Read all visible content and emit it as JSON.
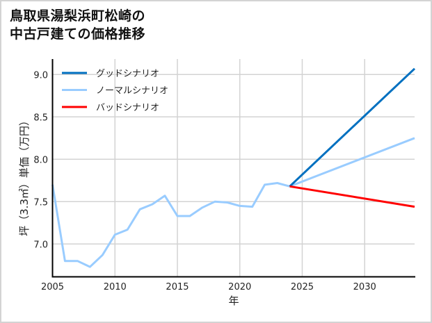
{
  "title": {
    "line1": "鳥取県湯梨浜町松崎の",
    "line2": "中古戸建ての価格推移"
  },
  "legend": [
    {
      "label": "グッドシナリオ",
      "color": "#0070c0"
    },
    {
      "label": "ノーマルシナリオ",
      "color": "#99ccff"
    },
    {
      "label": "バッドシナリオ",
      "color": "#ff0000"
    }
  ],
  "axes": {
    "xlabel": "年",
    "ylabel": "坪（3.3㎡）単価（万円）",
    "xticks": [
      "2005",
      "2010",
      "2015",
      "2020",
      "2025",
      "2030"
    ],
    "yticks": [
      "7.0",
      "7.5",
      "8.0",
      "8.5",
      "9.0"
    ]
  },
  "chart_data": {
    "type": "line",
    "title": "鳥取県湯梨浜町松崎の中古戸建ての価格推移",
    "xlabel": "年",
    "ylabel": "坪（3.3㎡）単価（万円）",
    "xlim": [
      2005,
      2034
    ],
    "ylim": [
      6.62,
      9.17
    ],
    "grid": true,
    "legend_position": "upper left",
    "series": [
      {
        "name": "ノーマルシナリオ (実績)",
        "color": "#99ccff",
        "x": [
          2005,
          2006,
          2007,
          2008,
          2009,
          2010,
          2011,
          2012,
          2013,
          2014,
          2015,
          2016,
          2017,
          2018,
          2019,
          2020,
          2021,
          2022,
          2023,
          2024
        ],
        "values": [
          7.7,
          6.8,
          6.8,
          6.73,
          6.87,
          7.11,
          7.17,
          7.41,
          7.47,
          7.57,
          7.33,
          7.33,
          7.43,
          7.5,
          7.49,
          7.45,
          7.44,
          7.7,
          7.72,
          7.68
        ]
      },
      {
        "name": "グッドシナリオ",
        "color": "#0070c0",
        "x": [
          2024,
          2034
        ],
        "values": [
          7.68,
          9.07
        ]
      },
      {
        "name": "ノーマルシナリオ",
        "color": "#99ccff",
        "x": [
          2024,
          2034
        ],
        "values": [
          7.68,
          8.25
        ]
      },
      {
        "name": "バッドシナリオ",
        "color": "#ff0000",
        "x": [
          2024,
          2034
        ],
        "values": [
          7.68,
          7.44
        ]
      }
    ]
  }
}
